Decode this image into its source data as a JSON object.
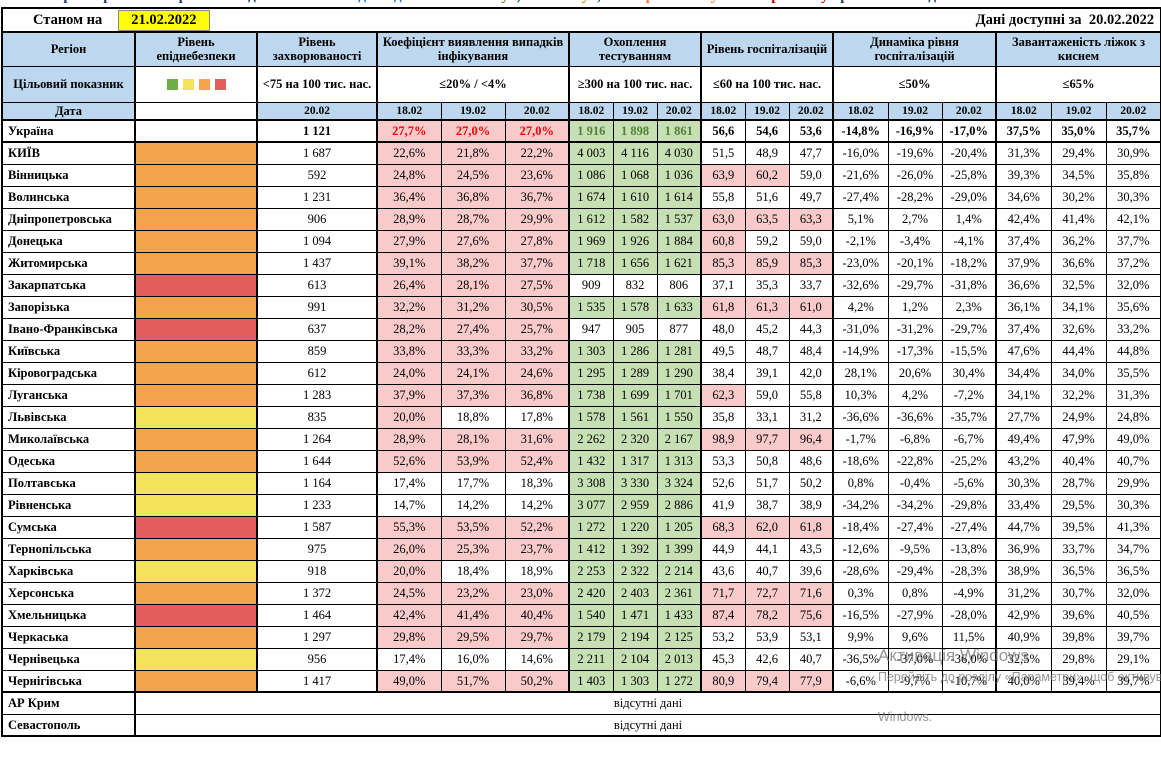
{
  "title_strip": {
    "segments": [
      {
        "text": "Перелік регіонів за рівнем епіднебезпеки та ",
        "color": "#1F3B73"
      },
      {
        "text": "відповідність ",
        "color": "#2E75B6"
      },
      {
        "text": "«зеленому»",
        "color": "#538135"
      },
      {
        "text": ", ",
        "color": "#1F3B73"
      },
      {
        "text": "«жовтому»",
        "color": "#BF8F00"
      },
      {
        "text": ", ",
        "color": "#1F3B73"
      },
      {
        "text": "«помаранчевому»",
        "color": "#ED7D31"
      },
      {
        "text": " та ",
        "color": "#1F3B73"
      },
      {
        "text": "«червоному»",
        "color": "#C00000"
      },
      {
        "text": " рівням за епідеміологічними показниками",
        "color": "#1F3B73"
      }
    ]
  },
  "topbar": {
    "as_of_label": "Станом на",
    "as_of_date": "21.02.2022",
    "available_label": "Дані доступні за",
    "available_date": "20.02.2022"
  },
  "header": {
    "region": "Регіон",
    "danger": "Рівень епіднебезпеки",
    "morbidity": "Рівень захворюваності",
    "detection": "Коефіцієнт виявлення випадків інфікування",
    "testing": "Охоплення тестуванням",
    "hosp": "Рівень госпіталізацій",
    "hosp_dyn": "Динаміка рівня госпіталізацій",
    "oxygen": "Завантаженість ліжок з киснем"
  },
  "targets": {
    "label": "Цільовий показник",
    "morbidity": "<75 на 100 тис. нас.",
    "detection": "≤20% / <4%",
    "testing": "≥300 на 100 тис. нас.",
    "hosp": "≤60 на 100 тис. нас.",
    "hosp_dyn": "≤50%",
    "oxygen": "≤65%"
  },
  "dates": {
    "label": "Дата",
    "morbidity": "20.02",
    "triple": [
      "18.02",
      "19.02",
      "20.02"
    ]
  },
  "legend_colors": [
    "#70AD47",
    "#F3E35A",
    "#F4A44C",
    "#E25D5D"
  ],
  "no_data_text": "відсутні дані",
  "watermark": {
    "line1": "Активація Windows",
    "line2": "Перейдіть до розділу «Параметри», щоб активувати",
    "line3": "Windows."
  },
  "colors": {
    "header-bg": "#BDD7EE",
    "cell-pink": "#F8CACA",
    "cell-green": "#C6E0B4",
    "danger-orange": "#F4A44C",
    "danger-red": "#E25D5D",
    "danger-yellow": "#F3E35A",
    "date-highlight": "#FFFF00",
    "ukraine-detection-text": "#FF0000",
    "ukraine-testing-text": "#538135",
    "border": "#000000"
  },
  "rows": [
    {
      "name": "Україна",
      "danger": "",
      "bold": true,
      "morbidity": "1 121",
      "det": [
        "27,7%",
        "27,0%",
        "27,0%"
      ],
      "test": [
        "1 916",
        "1 898",
        "1 861"
      ],
      "hosp": [
        "56,6",
        "54,6",
        "53,6"
      ],
      "dyn": [
        "-14,8%",
        "-16,9%",
        "-17,0%"
      ],
      "oxy": [
        "37,5%",
        "35,0%",
        "35,7%"
      ]
    },
    {
      "name": "КИЇВ",
      "danger": "orange",
      "morbidity": "1 687",
      "det": [
        "22,6%",
        "21,8%",
        "22,2%"
      ],
      "test": [
        "4 003",
        "4 116",
        "4 030"
      ],
      "hosp": [
        "51,5",
        "48,9",
        "47,7"
      ],
      "dyn": [
        "-16,0%",
        "-19,6%",
        "-20,4%"
      ],
      "oxy": [
        "31,3%",
        "29,4%",
        "30,9%"
      ]
    },
    {
      "name": "Вінницька",
      "danger": "orange",
      "morbidity": "592",
      "det": [
        "24,8%",
        "24,5%",
        "23,6%"
      ],
      "test": [
        "1 086",
        "1 068",
        "1 036"
      ],
      "hosp": [
        "63,9",
        "60,2",
        "59,0"
      ],
      "dyn": [
        "-21,6%",
        "-26,0%",
        "-25,8%"
      ],
      "oxy": [
        "39,3%",
        "34,5%",
        "35,8%"
      ]
    },
    {
      "name": "Волинська",
      "danger": "orange",
      "morbidity": "1 231",
      "det": [
        "36,4%",
        "36,8%",
        "36,7%"
      ],
      "test": [
        "1 674",
        "1 610",
        "1 614"
      ],
      "hosp": [
        "55,8",
        "51,6",
        "49,7"
      ],
      "dyn": [
        "-27,4%",
        "-28,2%",
        "-29,0%"
      ],
      "oxy": [
        "34,6%",
        "30,2%",
        "30,3%"
      ]
    },
    {
      "name": "Дніпропетровська",
      "danger": "orange",
      "morbidity": "906",
      "det": [
        "28,9%",
        "28,7%",
        "29,9%"
      ],
      "test": [
        "1 612",
        "1 582",
        "1 537"
      ],
      "hosp": [
        "63,0",
        "63,5",
        "63,3"
      ],
      "dyn": [
        "5,1%",
        "2,7%",
        "1,4%"
      ],
      "oxy": [
        "42,4%",
        "41,4%",
        "42,1%"
      ]
    },
    {
      "name": "Донецька",
      "danger": "orange",
      "morbidity": "1 094",
      "det": [
        "27,9%",
        "27,6%",
        "27,8%"
      ],
      "test": [
        "1 969",
        "1 926",
        "1 884"
      ],
      "hosp": [
        "60,8",
        "59,2",
        "59,0"
      ],
      "dyn": [
        "-2,1%",
        "-3,4%",
        "-4,1%"
      ],
      "oxy": [
        "37,4%",
        "36,2%",
        "37,7%"
      ]
    },
    {
      "name": "Житомирська",
      "danger": "orange",
      "morbidity": "1 437",
      "det": [
        "39,1%",
        "38,2%",
        "37,7%"
      ],
      "test": [
        "1 718",
        "1 656",
        "1 621"
      ],
      "hosp": [
        "85,3",
        "85,9",
        "85,3"
      ],
      "dyn": [
        "-23,0%",
        "-20,1%",
        "-18,2%"
      ],
      "oxy": [
        "37,9%",
        "36,6%",
        "37,2%"
      ]
    },
    {
      "name": "Закарпатська",
      "danger": "red",
      "morbidity": "613",
      "det": [
        "26,4%",
        "28,1%",
        "27,5%"
      ],
      "test": [
        "909",
        "832",
        "806"
      ],
      "hosp": [
        "37,1",
        "35,3",
        "33,7"
      ],
      "dyn": [
        "-32,6%",
        "-29,7%",
        "-31,8%"
      ],
      "oxy": [
        "36,6%",
        "32,5%",
        "32,0%"
      ]
    },
    {
      "name": "Запорізька",
      "danger": "orange",
      "morbidity": "991",
      "det": [
        "32,2%",
        "31,2%",
        "30,5%"
      ],
      "test": [
        "1 535",
        "1 578",
        "1 633"
      ],
      "hosp": [
        "61,8",
        "61,3",
        "61,0"
      ],
      "dyn": [
        "4,2%",
        "1,2%",
        "2,3%"
      ],
      "oxy": [
        "36,1%",
        "34,1%",
        "35,6%"
      ]
    },
    {
      "name": "Івано-Франківська",
      "danger": "red",
      "morbidity": "637",
      "det": [
        "28,2%",
        "27,4%",
        "25,7%"
      ],
      "test": [
        "947",
        "905",
        "877"
      ],
      "hosp": [
        "48,0",
        "45,2",
        "44,3"
      ],
      "dyn": [
        "-31,0%",
        "-31,2%",
        "-29,7%"
      ],
      "oxy": [
        "37,4%",
        "32,6%",
        "33,2%"
      ]
    },
    {
      "name": "Київська",
      "danger": "orange",
      "morbidity": "859",
      "det": [
        "33,8%",
        "33,3%",
        "33,2%"
      ],
      "test": [
        "1 303",
        "1 286",
        "1 281"
      ],
      "hosp": [
        "49,5",
        "48,7",
        "48,4"
      ],
      "dyn": [
        "-14,9%",
        "-17,3%",
        "-15,5%"
      ],
      "oxy": [
        "47,6%",
        "44,4%",
        "44,8%"
      ]
    },
    {
      "name": "Кіровоградська",
      "danger": "orange",
      "morbidity": "612",
      "det": [
        "24,0%",
        "24,1%",
        "24,6%"
      ],
      "test": [
        "1 295",
        "1 289",
        "1 290"
      ],
      "hosp": [
        "38,4",
        "39,1",
        "42,0"
      ],
      "dyn": [
        "28,1%",
        "20,6%",
        "30,4%"
      ],
      "oxy": [
        "34,4%",
        "34,0%",
        "35,5%"
      ]
    },
    {
      "name": "Луганська",
      "danger": "orange",
      "morbidity": "1 283",
      "det": [
        "37,9%",
        "37,3%",
        "36,8%"
      ],
      "test": [
        "1 738",
        "1 699",
        "1 701"
      ],
      "hosp": [
        "62,3",
        "59,0",
        "55,8"
      ],
      "dyn": [
        "10,3%",
        "4,2%",
        "-7,2%"
      ],
      "oxy": [
        "34,1%",
        "32,2%",
        "31,3%"
      ]
    },
    {
      "name": "Львівська",
      "danger": "yellow",
      "morbidity": "835",
      "det": [
        "20,0%",
        "18,8%",
        "17,8%"
      ],
      "test": [
        "1 578",
        "1 561",
        "1 550"
      ],
      "hosp": [
        "35,8",
        "33,1",
        "31,2"
      ],
      "dyn": [
        "-36,6%",
        "-36,6%",
        "-35,7%"
      ],
      "oxy": [
        "27,7%",
        "24,9%",
        "24,8%"
      ]
    },
    {
      "name": "Миколаївська",
      "danger": "orange",
      "morbidity": "1 264",
      "det": [
        "28,9%",
        "28,1%",
        "31,6%"
      ],
      "test": [
        "2 262",
        "2 320",
        "2 167"
      ],
      "hosp": [
        "98,9",
        "97,7",
        "96,4"
      ],
      "dyn": [
        "-1,7%",
        "-6,8%",
        "-6,7%"
      ],
      "oxy": [
        "49,4%",
        "47,9%",
        "49,0%"
      ]
    },
    {
      "name": "Одеська",
      "danger": "orange",
      "morbidity": "1 644",
      "det": [
        "52,6%",
        "53,9%",
        "52,4%"
      ],
      "test": [
        "1 432",
        "1 317",
        "1 313"
      ],
      "hosp": [
        "53,3",
        "50,8",
        "48,6"
      ],
      "dyn": [
        "-18,6%",
        "-22,8%",
        "-25,2%"
      ],
      "oxy": [
        "43,2%",
        "40,4%",
        "40,7%"
      ]
    },
    {
      "name": "Полтавська",
      "danger": "yellow",
      "morbidity": "1 164",
      "det": [
        "17,4%",
        "17,7%",
        "18,3%"
      ],
      "test": [
        "3 308",
        "3 330",
        "3 324"
      ],
      "hosp": [
        "52,6",
        "51,7",
        "50,2"
      ],
      "dyn": [
        "0,8%",
        "-0,4%",
        "-5,6%"
      ],
      "oxy": [
        "30,3%",
        "28,7%",
        "29,9%"
      ]
    },
    {
      "name": "Рівненська",
      "danger": "yellow",
      "morbidity": "1 233",
      "det": [
        "14,7%",
        "14,2%",
        "14,2%"
      ],
      "test": [
        "3 077",
        "2 959",
        "2 886"
      ],
      "hosp": [
        "41,9",
        "38,7",
        "38,9"
      ],
      "dyn": [
        "-34,2%",
        "-34,2%",
        "-29,8%"
      ],
      "oxy": [
        "33,4%",
        "29,5%",
        "30,3%"
      ]
    },
    {
      "name": "Сумська",
      "danger": "red",
      "morbidity": "1 587",
      "det": [
        "55,3%",
        "53,5%",
        "52,2%"
      ],
      "test": [
        "1 272",
        "1 220",
        "1 205"
      ],
      "hosp": [
        "68,3",
        "62,0",
        "61,8"
      ],
      "dyn": [
        "-18,4%",
        "-27,4%",
        "-27,4%"
      ],
      "oxy": [
        "44,7%",
        "39,5%",
        "41,3%"
      ]
    },
    {
      "name": "Тернопільська",
      "danger": "orange",
      "morbidity": "975",
      "det": [
        "26,0%",
        "25,3%",
        "23,7%"
      ],
      "test": [
        "1 412",
        "1 392",
        "1 399"
      ],
      "hosp": [
        "44,9",
        "44,1",
        "43,5"
      ],
      "dyn": [
        "-12,6%",
        "-9,5%",
        "-13,8%"
      ],
      "oxy": [
        "36,9%",
        "33,7%",
        "34,7%"
      ]
    },
    {
      "name": "Харківська",
      "danger": "yellow",
      "morbidity": "918",
      "det": [
        "20,0%",
        "18,4%",
        "18,9%"
      ],
      "test": [
        "2 253",
        "2 322",
        "2 214"
      ],
      "hosp": [
        "43,6",
        "40,7",
        "39,6"
      ],
      "dyn": [
        "-28,6%",
        "-29,4%",
        "-28,3%"
      ],
      "oxy": [
        "38,9%",
        "36,5%",
        "36,5%"
      ]
    },
    {
      "name": "Херсонська",
      "danger": "orange",
      "morbidity": "1 372",
      "det": [
        "24,5%",
        "23,2%",
        "23,0%"
      ],
      "test": [
        "2 420",
        "2 403",
        "2 361"
      ],
      "hosp": [
        "71,7",
        "72,7",
        "71,6"
      ],
      "dyn": [
        "0,3%",
        "0,8%",
        "-4,9%"
      ],
      "oxy": [
        "31,2%",
        "30,7%",
        "32,0%"
      ]
    },
    {
      "name": "Хмельницька",
      "danger": "red",
      "morbidity": "1 464",
      "det": [
        "42,4%",
        "41,4%",
        "40,4%"
      ],
      "test": [
        "1 540",
        "1 471",
        "1 433"
      ],
      "hosp": [
        "87,4",
        "78,2",
        "75,6"
      ],
      "dyn": [
        "-16,5%",
        "-27,9%",
        "-28,0%"
      ],
      "oxy": [
        "42,9%",
        "39,6%",
        "40,5%"
      ]
    },
    {
      "name": "Черкаська",
      "danger": "orange",
      "morbidity": "1 297",
      "det": [
        "29,8%",
        "29,5%",
        "29,7%"
      ],
      "test": [
        "2 179",
        "2 194",
        "2 125"
      ],
      "hosp": [
        "53,2",
        "53,9",
        "53,1"
      ],
      "dyn": [
        "9,9%",
        "9,6%",
        "11,5%"
      ],
      "oxy": [
        "40,9%",
        "39,8%",
        "39,7%"
      ]
    },
    {
      "name": "Чернівецька",
      "danger": "yellow",
      "morbidity": "956",
      "det": [
        "17,4%",
        "16,0%",
        "14,6%"
      ],
      "test": [
        "2 211",
        "2 104",
        "2 013"
      ],
      "hosp": [
        "45,3",
        "42,6",
        "40,7"
      ],
      "dyn": [
        "-36,5%",
        "-37,0%",
        "-36,0%"
      ],
      "oxy": [
        "32,5%",
        "29,8%",
        "29,1%"
      ]
    },
    {
      "name": "Чернігівська",
      "danger": "orange",
      "morbidity": "1 417",
      "det": [
        "49,0%",
        "51,7%",
        "50,2%"
      ],
      "test": [
        "1 403",
        "1 303",
        "1 272"
      ],
      "hosp": [
        "80,9",
        "79,4",
        "77,9"
      ],
      "dyn": [
        "-6,6%",
        "-9,7%",
        "-10,7%"
      ],
      "oxy": [
        "40,0%",
        "39,4%",
        "39,7%"
      ]
    },
    {
      "name": "АР Крим",
      "no_data": true,
      "thick_top": true
    },
    {
      "name": "Севастополь",
      "no_data": true
    }
  ]
}
